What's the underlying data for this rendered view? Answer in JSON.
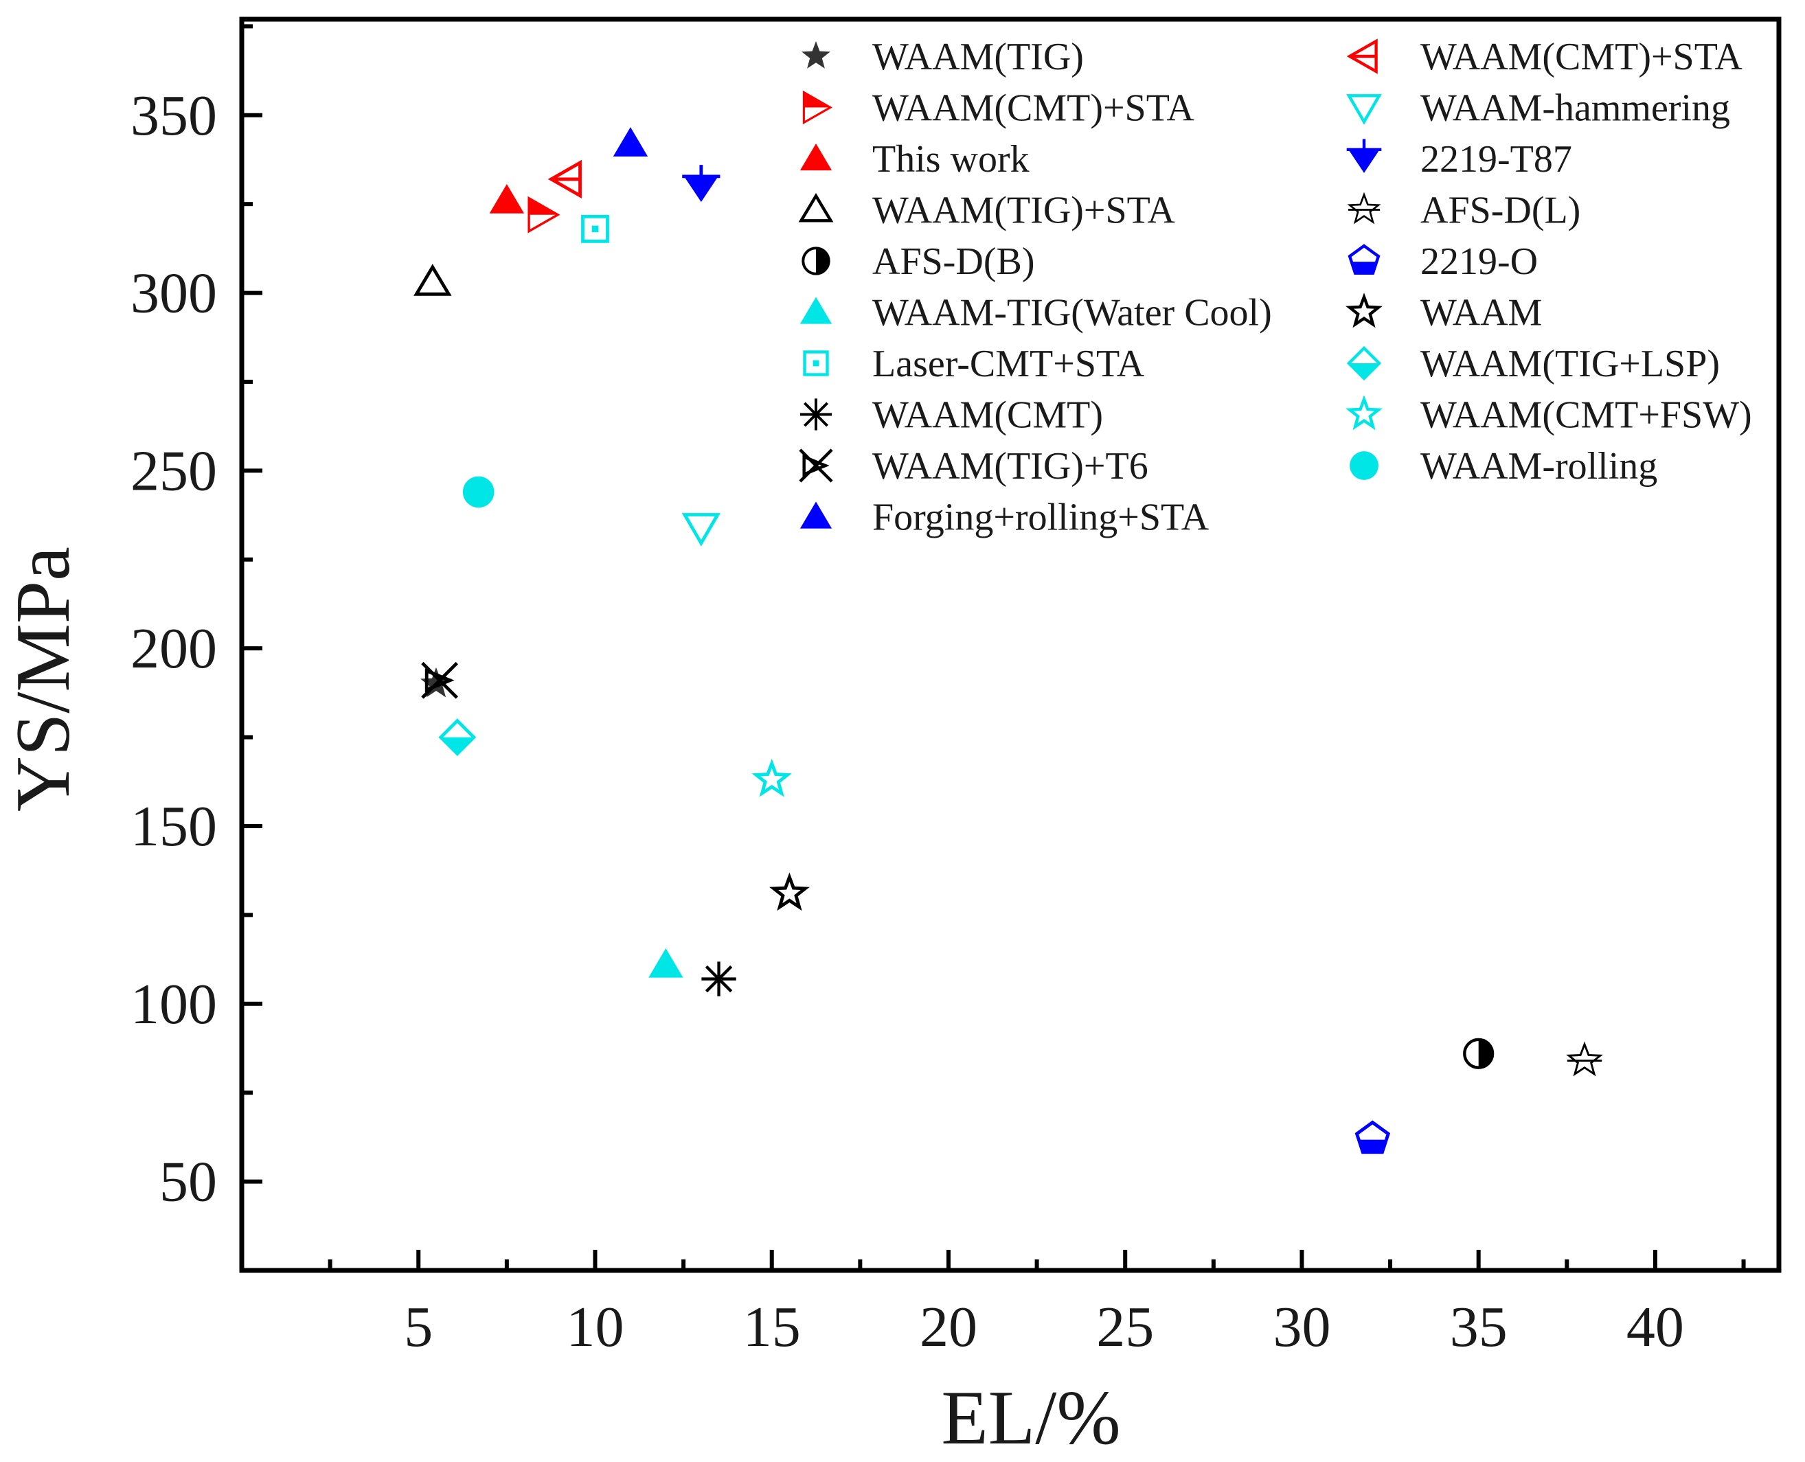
{
  "chart_data": {
    "type": "scatter",
    "title": "",
    "xlabel": "EL/%",
    "ylabel": "YS/MPa",
    "xlim": [
      0,
      43.5
    ],
    "ylim": [
      25,
      377
    ],
    "grid": false,
    "legend_position": "top-right",
    "x_ticks": [
      {
        "value": 5,
        "label": "5"
      },
      {
        "value": 10,
        "label": "10"
      },
      {
        "value": 15,
        "label": "15"
      },
      {
        "value": 20,
        "label": "20"
      },
      {
        "value": 25,
        "label": "25"
      },
      {
        "value": 30,
        "label": "30"
      },
      {
        "value": 35,
        "label": "35"
      },
      {
        "value": 40,
        "label": "40"
      }
    ],
    "y_ticks": [
      {
        "value": 50,
        "label": "50"
      },
      {
        "value": 100,
        "label": "100"
      },
      {
        "value": 150,
        "label": "150"
      },
      {
        "value": 200,
        "label": "200"
      },
      {
        "value": 250,
        "label": "250"
      },
      {
        "value": 300,
        "label": "300"
      },
      {
        "value": 350,
        "label": "350"
      }
    ],
    "series": [
      {
        "name": "WAAM(TIG)",
        "marker": "star-filled",
        "color": "#333333",
        "x": 5.5,
        "y": 190
      },
      {
        "name": "WAAM(CMT)+STA",
        "marker": "tri-right-open",
        "color": "#ff0000",
        "x": 8.5,
        "y": 322
      },
      {
        "name": "This work",
        "marker": "tri-up-filled",
        "color": "#ff0000",
        "x": 7.5,
        "y": 326
      },
      {
        "name": "WAAM(TIG)+STA",
        "marker": "tri-up-open",
        "color": "#000000",
        "x": 5.4,
        "y": 303
      },
      {
        "name": "AFS-D(B)",
        "marker": "circle-half",
        "color": "#000000",
        "x": 35,
        "y": 86
      },
      {
        "name": "WAAM-TIG(Water Cool)",
        "marker": "tri-up-filled",
        "color": "#00e6e6",
        "x": 12,
        "y": 111
      },
      {
        "name": "Laser-CMT+STA",
        "marker": "square-dot",
        "color": "#00e6e6",
        "x": 10,
        "y": 318
      },
      {
        "name": "WAAM(CMT)",
        "marker": "asterisk",
        "color": "#000000",
        "x": 13.5,
        "y": 107
      },
      {
        "name": "WAAM(TIG)+T6",
        "marker": "x-tri",
        "color": "#000000",
        "x": 5.6,
        "y": 191
      },
      {
        "name": "Forging+rolling+STA",
        "marker": "tri-up-filled",
        "color": "#0000ff",
        "x": 11,
        "y": 342
      },
      {
        "name": "WAAM(CMT)+STA",
        "marker": "tri-left-open",
        "color": "#ff0000",
        "x": 9.2,
        "y": 332
      },
      {
        "name": "WAAM-hammering",
        "marker": "tri-down-open",
        "color": "#00e6e6",
        "x": 13,
        "y": 234
      },
      {
        "name": "2219-T87",
        "marker": "tri-down-plus",
        "color": "#0000ff",
        "x": 13,
        "y": 330
      },
      {
        "name": "AFS-D(L)",
        "marker": "star-plus",
        "color": "#000000",
        "x": 38,
        "y": 84
      },
      {
        "name": "2219-O",
        "marker": "pentagon-open",
        "color": "#0000ff",
        "x": 32,
        "y": 62
      },
      {
        "name": "WAAM",
        "marker": "star-open",
        "color": "#000000",
        "x": 15.5,
        "y": 131
      },
      {
        "name": "WAAM(TIG+LSP)",
        "marker": "diamond-half",
        "color": "#00e6e6",
        "x": 6.1,
        "y": 175
      },
      {
        "name": "WAAM(CMT+FSW)",
        "marker": "star-open",
        "color": "#00e6e6",
        "x": 15,
        "y": 163
      },
      {
        "name": "WAAM-rolling",
        "marker": "circle-filled",
        "color": "#00e6e6",
        "x": 6.7,
        "y": 244
      }
    ]
  }
}
